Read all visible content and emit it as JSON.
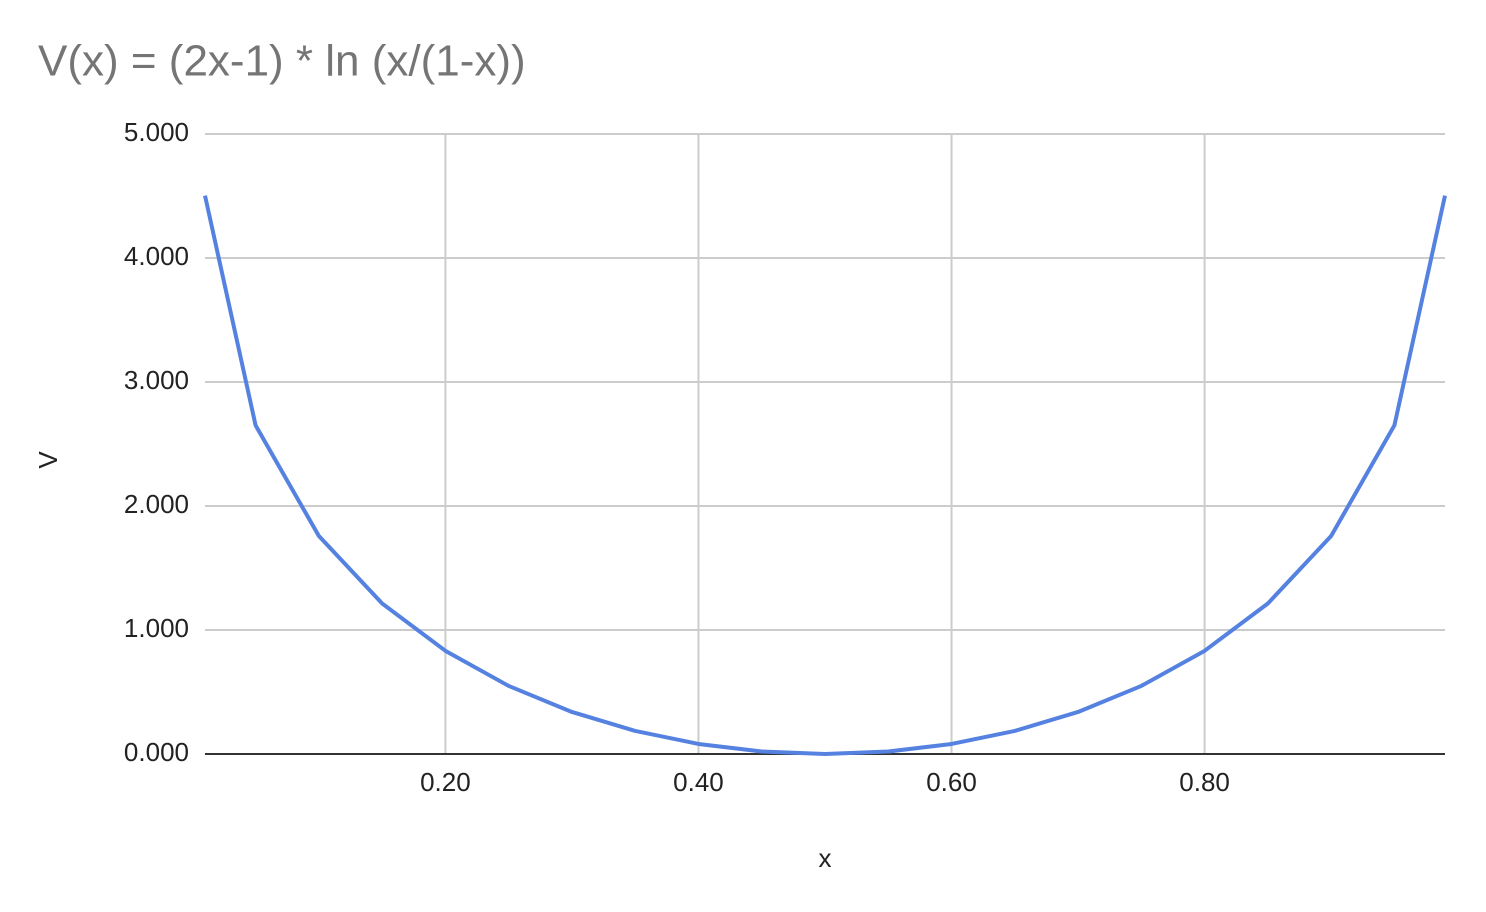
{
  "chart_data": {
    "type": "line",
    "title": "V(x) = (2x-1) * ln (x/(1-x))",
    "x_label": "x",
    "y_label": "V",
    "x": [
      0.01,
      0.05,
      0.1,
      0.15,
      0.2,
      0.25,
      0.3,
      0.35,
      0.4,
      0.45,
      0.5,
      0.55,
      0.6,
      0.65,
      0.7,
      0.75,
      0.8,
      0.85,
      0.9,
      0.95,
      0.99
    ],
    "series": [
      {
        "name": "V",
        "color": "#5582e0",
        "values": [
          4.503,
          2.65,
          1.758,
          1.214,
          0.832,
          0.549,
          0.339,
          0.186,
          0.081,
          0.02,
          0,
          0.02,
          0.081,
          0.186,
          0.339,
          0.549,
          0.832,
          1.214,
          1.758,
          2.65,
          4.503
        ]
      }
    ],
    "xlim": [
      0.01,
      0.99
    ],
    "xticks": [
      {
        "value": 0.2,
        "label": "0.20"
      },
      {
        "value": 0.4,
        "label": "0.40"
      },
      {
        "value": 0.6,
        "label": "0.60"
      },
      {
        "value": 0.8,
        "label": "0.80"
      }
    ],
    "ylim": [
      0,
      5
    ],
    "yticks": [
      {
        "value": 0,
        "label": "0.000"
      },
      {
        "value": 1,
        "label": "1.000"
      },
      {
        "value": 2,
        "label": "2.000"
      },
      {
        "value": 3,
        "label": "3.000"
      },
      {
        "value": 4,
        "label": "4.000"
      },
      {
        "value": 5,
        "label": "5.000"
      }
    ],
    "grid": true
  }
}
